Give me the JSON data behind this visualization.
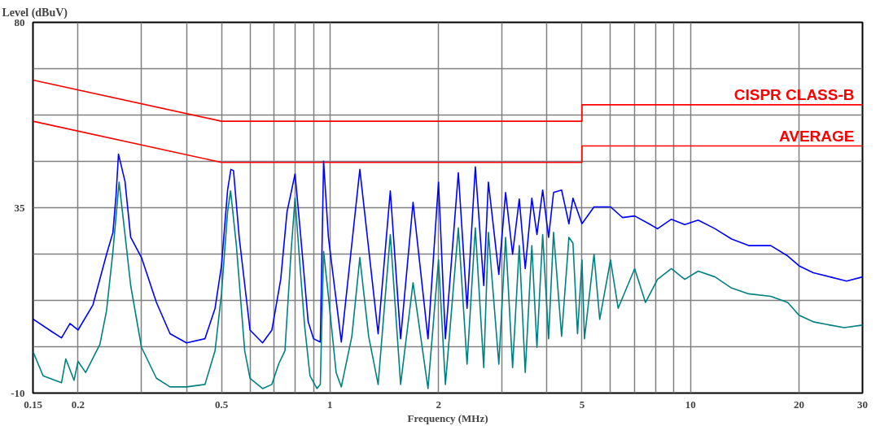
{
  "chart_data": {
    "type": "line",
    "xlabel": "Frequency (MHz)",
    "ylabel": "Level (dBuV)",
    "log": "x",
    "xlim": [
      0.15,
      30
    ],
    "ylim": [
      -10,
      80
    ],
    "xticks": [
      0.15,
      0.2,
      {
        "value": 0.3,
        "label": null
      },
      {
        "value": 0.4,
        "label": null
      },
      0.5,
      {
        "value": 0.6,
        "label": null
      },
      {
        "value": 0.7,
        "label": null
      },
      {
        "value": 0.8,
        "label": null
      },
      {
        "value": 0.9,
        "label": null
      },
      1,
      2,
      {
        "value": 3,
        "label": null
      },
      {
        "value": 4,
        "label": null
      },
      5,
      {
        "value": 6,
        "label": null
      },
      {
        "value": 7,
        "label": null
      },
      {
        "value": 8,
        "label": null
      },
      {
        "value": 9,
        "label": null
      },
      10,
      20,
      30
    ],
    "yticks": [
      -10,
      {
        "value": 1.25,
        "label": null
      },
      {
        "value": 12.5,
        "label": null
      },
      {
        "value": 23.75,
        "label": null
      },
      35,
      {
        "value": 46.25,
        "label": null
      },
      {
        "value": 57.5,
        "label": null
      },
      {
        "value": 68.75,
        "label": null
      },
      80
    ],
    "grid": true,
    "series": [
      {
        "name": "CISPR CLASS-B",
        "color": "#ff0000",
        "x": [
          0.15,
          0.5,
          5,
          5,
          30
        ],
        "values": [
          66,
          56,
          56,
          60,
          60
        ]
      },
      {
        "name": "AVERAGE",
        "color": "#ff0000",
        "x": [
          0.15,
          0.5,
          5,
          5,
          30
        ],
        "values": [
          56,
          46,
          46,
          50,
          50
        ]
      },
      {
        "color": "#0000ff",
        "x": [
          0.15,
          0.17,
          0.18,
          0.19,
          0.2,
          0.22,
          0.24,
          0.25,
          0.255,
          0.259,
          0.27,
          0.28,
          0.3,
          0.33,
          0.36,
          0.4,
          0.45,
          0.48,
          0.5,
          0.52,
          0.531,
          0.54,
          0.56,
          0.6,
          0.65,
          0.69,
          0.73,
          0.76,
          0.8,
          0.83,
          0.87,
          0.9,
          0.94,
          0.96,
          0.99,
          1.075,
          1.21,
          1.36,
          1.47,
          1.57,
          1.7,
          1.87,
          2.0,
          2.09,
          2.27,
          2.4,
          2.53,
          2.67,
          2.75,
          2.94,
          3.07,
          3.21,
          3.35,
          3.48,
          3.63,
          3.75,
          3.89,
          4.04,
          4.17,
          4.39,
          4.6,
          4.72,
          5.0,
          5.4,
          6.0,
          6.48,
          7.0,
          7.67,
          8.1,
          8.85,
          9.64,
          10.5,
          11.7,
          13.0,
          14.5,
          16.7,
          18.6,
          20,
          21.9,
          24.4,
          27.1,
          30
        ],
        "values": [
          8,
          4.8,
          3.4,
          6.9,
          5.3,
          11.4,
          23.7,
          29,
          38,
          48,
          41.4,
          27.8,
          22.9,
          12,
          4.4,
          2.2,
          3.2,
          10.6,
          20.9,
          39.3,
          44.3,
          44,
          27.8,
          5.3,
          2.2,
          5.3,
          17.6,
          34,
          43.2,
          27.8,
          7.3,
          3.2,
          2.4,
          46.3,
          27.8,
          2.4,
          44.3,
          4.4,
          39.1,
          3.2,
          36.3,
          3.2,
          41.2,
          3.2,
          43.5,
          10.6,
          44.9,
          16.1,
          41.2,
          18.8,
          38.7,
          23.7,
          37.1,
          20.2,
          37.3,
          28.5,
          39.3,
          27.8,
          38.7,
          39.3,
          31.1,
          37.3,
          31.1,
          35.2,
          35.2,
          32.6,
          33,
          31.1,
          29.9,
          32.2,
          30.9,
          32,
          29.9,
          27.4,
          25.8,
          25.8,
          23.3,
          20.9,
          19.2,
          18.2,
          17.2,
          18.2
        ]
      },
      {
        "color": "#008080",
        "x": [
          0.15,
          0.16,
          0.18,
          0.185,
          0.195,
          0.2,
          0.21,
          0.23,
          0.24,
          0.25,
          0.26,
          0.27,
          0.28,
          0.3,
          0.33,
          0.36,
          0.4,
          0.45,
          0.48,
          0.5,
          0.52,
          0.53,
          0.55,
          0.58,
          0.6,
          0.65,
          0.69,
          0.72,
          0.75,
          0.78,
          0.8,
          0.82,
          0.85,
          0.88,
          0.92,
          0.94,
          0.96,
          0.99,
          1.04,
          1.075,
          1.15,
          1.21,
          1.28,
          1.36,
          1.47,
          1.57,
          1.7,
          1.87,
          2.0,
          2.09,
          2.27,
          2.4,
          2.53,
          2.67,
          2.75,
          2.94,
          3.07,
          3.21,
          3.35,
          3.48,
          3.63,
          3.75,
          3.89,
          4.04,
          4.17,
          4.39,
          4.6,
          4.72,
          4.86,
          5.0,
          5.08,
          5.4,
          5.6,
          6.0,
          6.3,
          7.0,
          7.5,
          8.1,
          8.85,
          9.64,
          10.5,
          11.7,
          13.0,
          14.5,
          16.7,
          18.6,
          20,
          21.9,
          24.4,
          26.7,
          30
        ],
        "values": [
          0.1,
          -5.8,
          -7.5,
          -1.7,
          -6.9,
          -2.3,
          -5,
          1.8,
          10,
          24.4,
          41.2,
          28.5,
          16.1,
          1.1,
          -6.4,
          -8.5,
          -8.5,
          -7.9,
          0.3,
          14.1,
          34,
          39.1,
          25.8,
          0.3,
          -6.4,
          -8.9,
          -7.9,
          -3,
          0.3,
          24.4,
          37.3,
          24.4,
          6.5,
          -5.8,
          -8.9,
          -7.9,
          24.4,
          13.5,
          -5,
          -8.5,
          3.8,
          22.9,
          3.8,
          -7.9,
          28.5,
          -7.9,
          16.8,
          -8.9,
          22.3,
          -7.9,
          30.1,
          -3,
          30.1,
          -3.8,
          29,
          -3,
          27.8,
          -3.8,
          25.8,
          -5,
          25.8,
          1.1,
          28.5,
          3.2,
          29,
          3.8,
          27.8,
          26.4,
          4.4,
          22.3,
          3.2,
          23.7,
          7.9,
          22.3,
          10.6,
          20.2,
          12,
          17.6,
          20.2,
          17.6,
          19.6,
          18.2,
          15.5,
          14.1,
          13.5,
          12,
          8.9,
          7.3,
          6.5,
          5.9,
          6.5
        ]
      }
    ]
  }
}
